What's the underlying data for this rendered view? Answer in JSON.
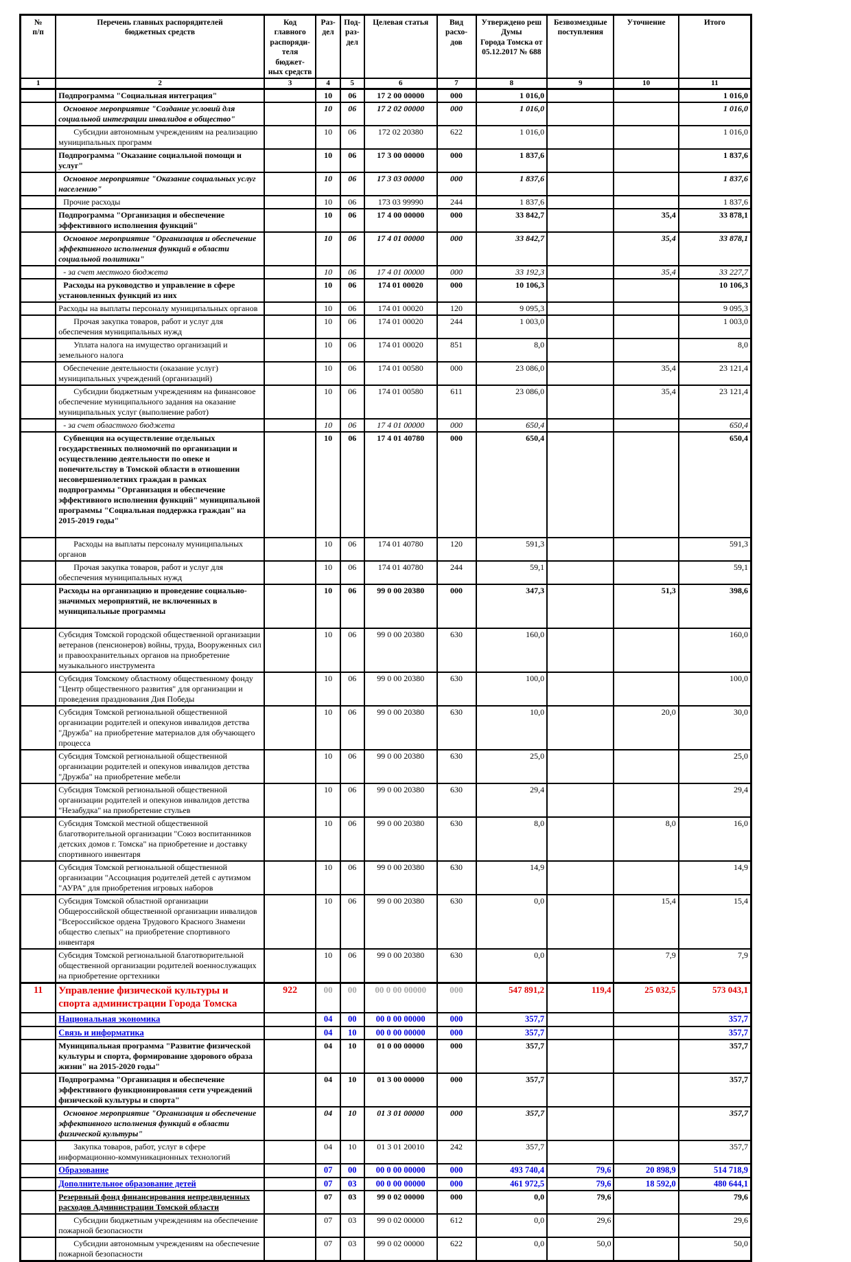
{
  "table": {
    "columns": [
      {
        "num": "1",
        "label": "№\nп/п"
      },
      {
        "num": "2",
        "label": "Перечень главных распорядителей\nбюджетных средств"
      },
      {
        "num": "3",
        "label": "Код главного\nраспоряди-\nтеля бюджет-\nных средств"
      },
      {
        "num": "4",
        "label": "Раз-\nдел"
      },
      {
        "num": "5",
        "label": "Под-\nраз-\nдел"
      },
      {
        "num": "6",
        "label": "Целевая статья"
      },
      {
        "num": "7",
        "label": "Вид расхо-\nдов"
      },
      {
        "num": "8",
        "label": "Утверждено реш Думы\nГорода Томска от\n05.12.2017 № 688"
      },
      {
        "num": "9",
        "label": "Безвозмездные\nпоступления"
      },
      {
        "num": "10",
        "label": "Уточнение"
      },
      {
        "num": "11",
        "label": "Итого"
      }
    ],
    "colors": {
      "accent_red": "#e00000",
      "accent_blue": "#0000dd",
      "ghost_gray": "#a6a6a6"
    },
    "rows": [
      {
        "n": "",
        "name": "Подпрограмма \"Социальная интеграция\"",
        "code": "",
        "rd": "10",
        "pdr": "06",
        "cst": "17 2 00 00000",
        "vr": "000",
        "v8": "1 016,0",
        "v9": "",
        "v10": "",
        "v11": "1 016,0",
        "style": "bold",
        "ind": 0
      },
      {
        "n": "",
        "name": "Основное мероприятие \"Создание условий для социальной интеграции инвалидов в общество\"",
        "code": "",
        "rd": "10",
        "pdr": "06",
        "cst": "17 2 02 00000",
        "vr": "000",
        "v8": "1 016,0",
        "v9": "",
        "v10": "",
        "v11": "1 016,0",
        "style": "bolditalic",
        "ind": 1
      },
      {
        "n": "",
        "name": "Субсидии автономным учреждениям на реализацию муниципальных программ",
        "code": "",
        "rd": "10",
        "pdr": "06",
        "cst": "172 02 20380",
        "vr": "622",
        "v8": "1 016,0",
        "v9": "",
        "v10": "",
        "v11": "1 016,0",
        "style": "normal",
        "ind": 2
      },
      {
        "n": "",
        "name": "Подпрограмма \"Оказание социальной помощи и услуг\"",
        "code": "",
        "rd": "10",
        "pdr": "06",
        "cst": "17 3 00 00000",
        "vr": "000",
        "v8": "1 837,6",
        "v9": "",
        "v10": "",
        "v11": "1 837,6",
        "style": "bold",
        "ind": 0
      },
      {
        "n": "",
        "name": "Основное мероприятие \"Оказание социальных услуг населению\"",
        "code": "",
        "rd": "10",
        "pdr": "06",
        "cst": "17 3 03 00000",
        "vr": "000",
        "v8": "1 837,6",
        "v9": "",
        "v10": "",
        "v11": "1 837,6",
        "style": "bolditalic",
        "ind": 1
      },
      {
        "n": "",
        "name": "Прочие расходы",
        "code": "",
        "rd": "10",
        "pdr": "06",
        "cst": "173 03 99990",
        "vr": "244",
        "v8": "1 837,6",
        "v9": "",
        "v10": "",
        "v11": "1 837,6",
        "style": "normal",
        "ind": 1
      },
      {
        "n": "",
        "name": "Подпрограмма \"Организация и обеспечение эффективного исполнения функций\"",
        "code": "",
        "rd": "10",
        "pdr": "06",
        "cst": "17 4 00 00000",
        "vr": "000",
        "v8": "33 842,7",
        "v9": "",
        "v10": "35,4",
        "v11": "33 878,1",
        "style": "bold",
        "ind": 0
      },
      {
        "n": "",
        "name": "Основное мероприятие \"Организация и обеспечение эффективного исполнения функций в области социальной политики\"",
        "code": "",
        "rd": "10",
        "pdr": "06",
        "cst": "17 4 01 00000",
        "vr": "000",
        "v8": "33 842,7",
        "v9": "",
        "v10": "35,4",
        "v11": "33 878,1",
        "style": "bolditalic",
        "ind": 1
      },
      {
        "n": "",
        "name": "- за счет местного бюджета",
        "code": "",
        "rd": "10",
        "pdr": "06",
        "cst": "17 4 01 00000",
        "vr": "000",
        "v8": "33 192,3",
        "v9": "",
        "v10": "35,4",
        "v11": "33 227,7",
        "style": "italic",
        "ind": 1
      },
      {
        "n": "",
        "name": "Расходы на руководство и управление в сфере установленных функций из них",
        "code": "",
        "rd": "10",
        "pdr": "06",
        "cst": "174 01 00020",
        "vr": "000",
        "v8": "10 106,3",
        "v9": "",
        "v10": "",
        "v11": "10 106,3",
        "style": "bold",
        "ind": 1
      },
      {
        "n": "",
        "name": "Расходы на выплаты персоналу муниципальных органов",
        "code": "",
        "rd": "10",
        "pdr": "06",
        "cst": "174 01 00020",
        "vr": "120",
        "v8": "9 095,3",
        "v9": "",
        "v10": "",
        "v11": "9 095,3",
        "style": "normal",
        "ind": 0
      },
      {
        "n": "",
        "name": "Прочая закупка товаров, работ и услуг для обеспечения муниципальных нужд",
        "code": "",
        "rd": "10",
        "pdr": "06",
        "cst": "174 01 00020",
        "vr": "244",
        "v8": "1 003,0",
        "v9": "",
        "v10": "",
        "v11": "1 003,0",
        "style": "normal",
        "ind": 2
      },
      {
        "n": "",
        "name": "Уплата налога на имущество организаций и земельного налога",
        "code": "",
        "rd": "10",
        "pdr": "06",
        "cst": "174 01 00020",
        "vr": "851",
        "v8": "8,0",
        "v9": "",
        "v10": "",
        "v11": "8,0",
        "style": "normal",
        "ind": 2
      },
      {
        "n": "",
        "name": "Обеспечение деятельности (оказание услуг)  муниципальных учреждений (организаций)",
        "code": "",
        "rd": "10",
        "pdr": "06",
        "cst": "174 01 00580",
        "vr": "000",
        "v8": "23 086,0",
        "v9": "",
        "v10": "35,4",
        "v11": "23 121,4",
        "style": "normal",
        "ind": 1
      },
      {
        "n": "",
        "name": "Субсидии бюджетным учреждениям на финансовое обеспечение муниципального задания на оказание муниципальных услуг (выполнение работ)",
        "code": "",
        "rd": "10",
        "pdr": "06",
        "cst": "174 01 00580",
        "vr": "611",
        "v8": "23 086,0",
        "v9": "",
        "v10": "35,4",
        "v11": "23 121,4",
        "style": "normal",
        "ind": 2
      },
      {
        "n": "",
        "name": "- за счет областного бюджета",
        "code": "",
        "rd": "10",
        "pdr": "06",
        "cst": "17 4 01 00000",
        "vr": "000",
        "v8": "650,4",
        "v9": "",
        "v10": "",
        "v11": "650,4",
        "style": "italic",
        "ind": 1
      },
      {
        "n": "",
        "name": "Субвенция на осуществление отдельных государственных полномочий по организации и осуществлению деятельности по опеке и попечительству в Томской области в отношении несовершеннолетних граждан в рамках подпрограммы \"Организация и обеспечение эффективного исполнения функций\" муниципальной программы \"Социальная поддержка граждан\" на 2015-2019 годы\"",
        "code": "",
        "rd": "10",
        "pdr": "06",
        "cst": "17 4 01 40780",
        "vr": "000",
        "v8": "650,4",
        "v9": "",
        "v10": "",
        "v11": "650,4",
        "style": "bold",
        "ind": 1,
        "pad": true
      },
      {
        "n": "",
        "name": "Расходы на выплаты персоналу муниципальных органов",
        "code": "",
        "rd": "10",
        "pdr": "06",
        "cst": "174 01 40780",
        "vr": "120",
        "v8": "591,3",
        "v9": "",
        "v10": "",
        "v11": "591,3",
        "style": "normal",
        "ind": 2
      },
      {
        "n": "",
        "name": "Прочая закупка товаров, работ и услуг для обеспечения муниципальных нужд",
        "code": "",
        "rd": "10",
        "pdr": "06",
        "cst": "174 01 40780",
        "vr": "244",
        "v8": "59,1",
        "v9": "",
        "v10": "",
        "v11": "59,1",
        "style": "normal",
        "ind": 2
      },
      {
        "n": "",
        "name": "Расходы на организацию и проведение социально-значимых мероприятий, не включенных в муниципальные программы",
        "code": "",
        "rd": "10",
        "pdr": "06",
        "cst": "99 0 00 20380",
        "vr": "000",
        "v8": "347,3",
        "v9": "",
        "v10": "51,3",
        "v11": "398,6",
        "style": "bold",
        "ind": 0,
        "pad": true
      },
      {
        "n": "",
        "name": "Субсидия Томской городской общественной организации ветеранов (пенсионеров) войны, труда, Вооруженных сил и правоохранительных органов на приобретение музыкального инструмента",
        "code": "",
        "rd": "10",
        "pdr": "06",
        "cst": "99 0 00 20380",
        "vr": "630",
        "v8": "160,0",
        "v9": "",
        "v10": "",
        "v11": "160,0",
        "style": "normal",
        "ind": 0
      },
      {
        "n": "",
        "name": "Субсидия Томскому областному общественному фонду \"Центр общественного развития\" для организации и проведения празднования Дня Победы",
        "code": "",
        "rd": "10",
        "pdr": "06",
        "cst": "99 0 00 20380",
        "vr": "630",
        "v8": "100,0",
        "v9": "",
        "v10": "",
        "v11": "100,0",
        "style": "normal",
        "ind": 0
      },
      {
        "n": "",
        "name": "Субсидия Томской региональной общественной организации родителей и опекунов инвалидов детства \"Дружба\" на приобретение материалов для обучающего процесса",
        "code": "",
        "rd": "10",
        "pdr": "06",
        "cst": "99 0 00 20380",
        "vr": "630",
        "v8": "10,0",
        "v9": "",
        "v10": "20,0",
        "v11": "30,0",
        "style": "normal",
        "ind": 0
      },
      {
        "n": "",
        "name": "Субсидия Томской региональной общественной организации родителей и опекунов инвалидов детства \"Дружба\" на приобретение мебели",
        "code": "",
        "rd": "10",
        "pdr": "06",
        "cst": "99 0 00 20380",
        "vr": "630",
        "v8": "25,0",
        "v9": "",
        "v10": "",
        "v11": "25,0",
        "style": "normal",
        "ind": 0
      },
      {
        "n": "",
        "name": "Субсидия Томской региональной общественной организации родителей и опекунов инвалидов детства \"Незабудка\" на приобретение стульев",
        "code": "",
        "rd": "10",
        "pdr": "06",
        "cst": "99 0 00 20380",
        "vr": "630",
        "v8": "29,4",
        "v9": "",
        "v10": "",
        "v11": "29,4",
        "style": "normal",
        "ind": 0
      },
      {
        "n": "",
        "name": "Субсидия Томской местной общественной благотворительной организации \"Союз воспитанников детских домов г. Томска\" на приобретение и доставку спортивного инвентаря",
        "code": "",
        "rd": "10",
        "pdr": "06",
        "cst": "99 0 00 20380",
        "vr": "630",
        "v8": "8,0",
        "v9": "",
        "v10": "8,0",
        "v11": "16,0",
        "style": "normal",
        "ind": 0
      },
      {
        "n": "",
        "name": "Субсидия Томской региональной общественной организации \"Ассоциация родителей детей с аутизмом \"АУРА\" для приобретения игровых наборов",
        "code": "",
        "rd": "10",
        "pdr": "06",
        "cst": "99 0 00 20380",
        "vr": "630",
        "v8": "14,9",
        "v9": "",
        "v10": "",
        "v11": "14,9",
        "style": "normal",
        "ind": 0
      },
      {
        "n": "",
        "name": "Субсидия Томской областной организации Общероссийской общественной организации инвалидов \"Всероссийское ордена Трудового Красного Знамени общество слепых\" на приобретение спортивного инвентаря",
        "code": "",
        "rd": "10",
        "pdr": "06",
        "cst": "99 0 00 20380",
        "vr": "630",
        "v8": "0,0",
        "v9": "",
        "v10": "15,4",
        "v11": "15,4",
        "style": "normal",
        "ind": 0
      },
      {
        "n": "",
        "name": "Субсидия Томской региональной благотворительной общественной организации родителей военнослужащих на приобретение оргтехники",
        "code": "",
        "rd": "10",
        "pdr": "06",
        "cst": "99 0 00 20380",
        "vr": "630",
        "v8": "0,0",
        "v9": "",
        "v10": "7,9",
        "v11": "7,9",
        "style": "normal",
        "ind": 0
      },
      {
        "n": "11",
        "name": "Управление физической культуры и спорта администрации Города Томска",
        "code": "922",
        "rd": "00",
        "pdr": "00",
        "cst": "00 0 00 00000",
        "vr": "000",
        "v8": "547 891,2",
        "v9": "119,4",
        "v10": "25 032,5",
        "v11": "573 043,1",
        "style": "red",
        "ind": 0,
        "thick": true
      },
      {
        "n": "",
        "name": "Национальная экономика",
        "code": "",
        "rd": "04",
        "pdr": "00",
        "cst": "00 0 00 00000",
        "vr": "000",
        "v8": "357,7",
        "v9": "",
        "v10": "",
        "v11": "357,7",
        "style": "blue",
        "ind": 0
      },
      {
        "n": "",
        "name": "Связь и информатика",
        "code": "",
        "rd": "04",
        "pdr": "10",
        "cst": "00 0 00 00000",
        "vr": "000",
        "v8": "357,7",
        "v9": "",
        "v10": "",
        "v11": "357,7",
        "style": "blue",
        "ind": 0
      },
      {
        "n": "",
        "name": "Муниципальная программа \"Развитие физической культуры и спорта, формирование здорового образа жизни\" на 2015-2020 годы\"",
        "code": "",
        "rd": "04",
        "pdr": "10",
        "cst": "01 0 00 00000",
        "vr": "000",
        "v8": "357,7",
        "v9": "",
        "v10": "",
        "v11": "357,7",
        "style": "bold",
        "ind": 0
      },
      {
        "n": "",
        "name": "Подпрограмма \"Организация и обеспечение эффективного функционирования сети учреждений физической культуры и спорта\"",
        "code": "",
        "rd": "04",
        "pdr": "10",
        "cst": "01 3 00 00000",
        "vr": "000",
        "v8": "357,7",
        "v9": "",
        "v10": "",
        "v11": "357,7",
        "style": "bold",
        "ind": 0
      },
      {
        "n": "",
        "name": "Основное мероприятие \"Организация и обеспечение эффективного исполнения функций в области физической культуры\"",
        "code": "",
        "rd": "04",
        "pdr": "10",
        "cst": "01 3 01 00000",
        "vr": "000",
        "v8": "357,7",
        "v9": "",
        "v10": "",
        "v11": "357,7",
        "style": "bolditalic",
        "ind": 1
      },
      {
        "n": "",
        "name": "Закупка товаров, работ, услуг в сфере информационно-коммуникационных технологий",
        "code": "",
        "rd": "04",
        "pdr": "10",
        "cst": "01 3 01 20010",
        "vr": "242",
        "v8": "357,7",
        "v9": "",
        "v10": "",
        "v11": "357,7",
        "style": "normal",
        "ind": 2
      },
      {
        "n": "",
        "name": "Образование",
        "code": "",
        "rd": "07",
        "pdr": "00",
        "cst": "00 0 00 00000",
        "vr": "000",
        "v8": "493 740,4",
        "v9": "79,6",
        "v10": "20 898,9",
        "v11": "514 718,9",
        "style": "blue",
        "ind": 0
      },
      {
        "n": "",
        "name": "Дополнительное образование детей",
        "code": "",
        "rd": "07",
        "pdr": "03",
        "cst": "00 0 00 00000",
        "vr": "000",
        "v8": "461 972,5",
        "v9": "79,6",
        "v10": "18 592,0",
        "v11": "480 644,1",
        "style": "blue",
        "ind": 0
      },
      {
        "n": "",
        "name": "Резервный фонд финансирования непредвиденных расходов Администрации Томской области",
        "code": "",
        "rd": "07",
        "pdr": "03",
        "cst": "99 0 02 00000",
        "vr": "000",
        "v8": "0,0",
        "v9": "79,6",
        "v10": "",
        "v11": "79,6",
        "style": "boldu",
        "ind": 0
      },
      {
        "n": "",
        "name": "Субсидии бюджетным учреждениям на обеспечение пожарной безопасности",
        "code": "",
        "rd": "07",
        "pdr": "03",
        "cst": "99 0 02 00000",
        "vr": "612",
        "v8": "0,0",
        "v9": "29,6",
        "v10": "",
        "v11": "29,6",
        "style": "normal",
        "ind": 2
      },
      {
        "n": "",
        "name": "Субсидии автономным учреждениям на обеспечение пожарной безопасности",
        "code": "",
        "rd": "07",
        "pdr": "03",
        "cst": "99 0 02 00000",
        "vr": "622",
        "v8": "0,0",
        "v9": "50,0",
        "v10": "",
        "v11": "50,0",
        "style": "normal",
        "ind": 2
      }
    ]
  }
}
